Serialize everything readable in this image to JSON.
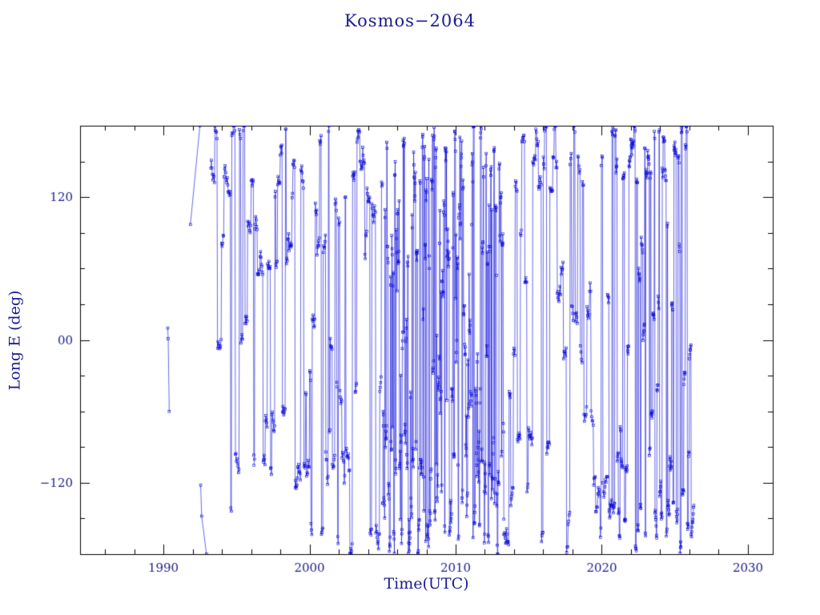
{
  "chart_data": {
    "type": "scatter-line",
    "title": "Kosmos−2064",
    "xlabel": "Time(UTC)",
    "ylabel": "Long E (deg)",
    "xlim": [
      1984.3,
      2031.7
    ],
    "ylim": [
      -180,
      180
    ],
    "x_ticks": [
      1990,
      2000,
      2010,
      2020,
      2030
    ],
    "x_tick_labels": [
      "1990",
      "2000",
      "2010",
      "2020",
      "2030"
    ],
    "x_minor_step": 2,
    "y_ticks": [
      -120,
      0,
      120
    ],
    "y_tick_labels": [
      "−120",
      "00",
      "120"
    ],
    "y_minor_step": 30,
    "line_color": "#0000d8",
    "marker": "open-square",
    "marker_size": 2.8,
    "frame_color": "#000000",
    "text_color": "#1c1c8f",
    "grid": false,
    "legend": false,
    "seed": 1234,
    "early_segments": [
      [
        [
          1990.3,
          10
        ],
        [
          1990.33,
          1
        ],
        [
          1990.4,
          -60
        ]
      ],
      [
        [
          1991.85,
          97
        ],
        [
          1992.5,
          180
        ]
      ],
      [
        [
          1992.55,
          -122
        ],
        [
          1992.62,
          -148
        ],
        [
          1992.95,
          -180
        ]
      ]
    ],
    "epochs": [
      {
        "t0": 1993.25,
        "t1": 1996.2,
        "dt": 0.035,
        "dwell": [
          2,
          8
        ],
        "wander": 7,
        "bands": [
          [
            60,
            180,
            0.5
          ],
          [
            -180,
            -95,
            0.36
          ],
          [
            -70,
            55,
            0.14
          ]
        ]
      },
      {
        "t0": 1996.2,
        "t1": 2005.0,
        "dt": 0.03,
        "dwell": [
          2,
          7
        ],
        "wander": 7,
        "bands": [
          [
            55,
            180,
            0.5
          ],
          [
            -180,
            -55,
            0.34
          ],
          [
            -55,
            55,
            0.16
          ]
        ]
      },
      {
        "t0": 2005.0,
        "t1": 2013.3,
        "dt": 0.018,
        "dwell": [
          1,
          4
        ],
        "wander": 12,
        "bands": [
          [
            -180,
            180,
            0.6
          ],
          [
            60,
            180,
            0.22
          ],
          [
            -180,
            -80,
            0.18
          ]
        ]
      },
      {
        "t0": 2013.3,
        "t1": 2017.0,
        "dt": 0.03,
        "dwell": [
          2,
          7
        ],
        "wander": 6,
        "bands": [
          [
            125,
            180,
            0.42
          ],
          [
            -180,
            -60,
            0.33
          ],
          [
            -60,
            120,
            0.25
          ]
        ]
      },
      {
        "t0": 2017.0,
        "t1": 2020.4,
        "dt": 0.035,
        "dwell": [
          2,
          6
        ],
        "wander": 8,
        "bands": [
          [
            130,
            180,
            0.26
          ],
          [
            -180,
            -115,
            0.27
          ],
          [
            -80,
            80,
            0.47
          ]
        ]
      },
      {
        "t0": 2020.4,
        "t1": 2026.3,
        "dt": 0.02,
        "dwell": [
          2,
          6
        ],
        "wander": 6,
        "bands": [
          [
            -180,
            -88,
            0.52
          ],
          [
            132,
            180,
            0.36
          ],
          [
            -80,
            100,
            0.12
          ]
        ]
      }
    ]
  }
}
